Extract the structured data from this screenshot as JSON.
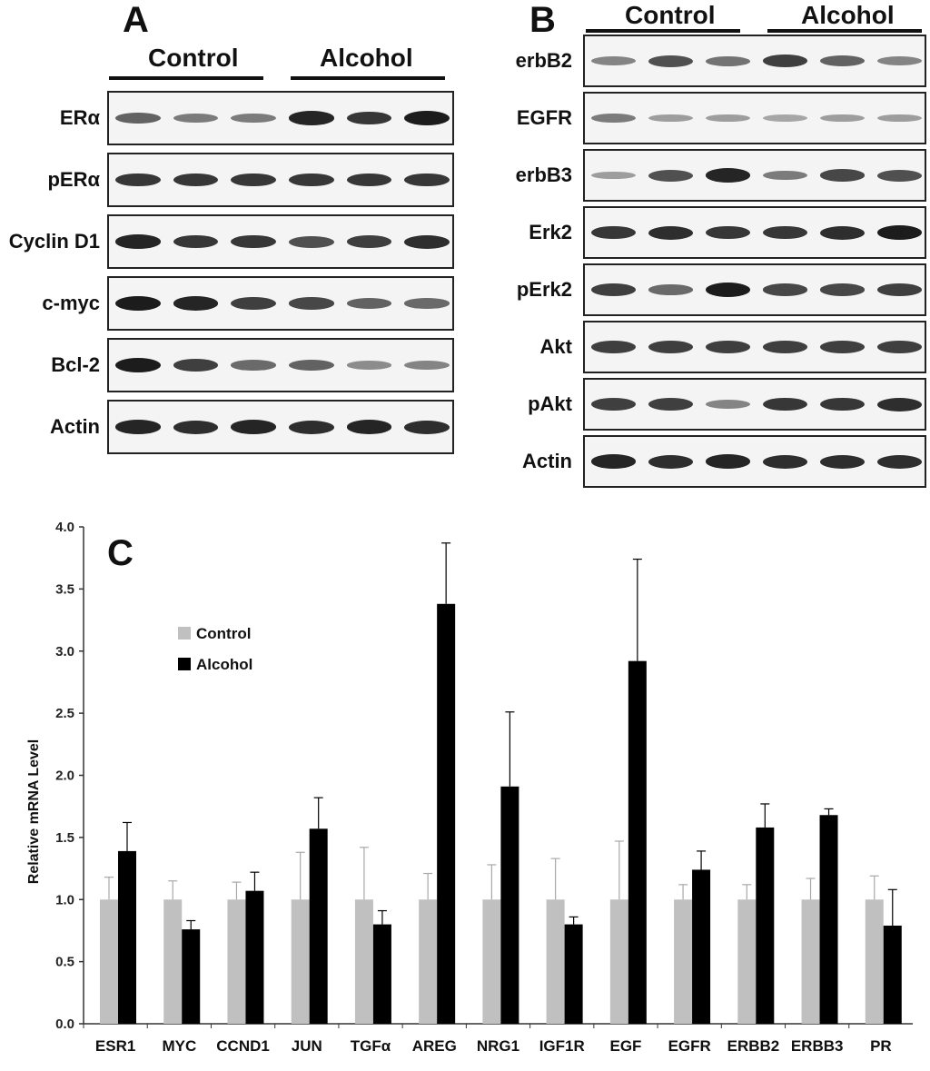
{
  "panelA": {
    "letter": "A",
    "groups": [
      "Control",
      "Alcohol"
    ],
    "rows": [
      {
        "label": "ERα",
        "bands": [
          0.6,
          0.45,
          0.45,
          0.95,
          0.85,
          1.0
        ]
      },
      {
        "label": "pERα",
        "bands": [
          0.85,
          0.85,
          0.85,
          0.85,
          0.85,
          0.85
        ]
      },
      {
        "label": "Cyclin D1",
        "bands": [
          0.95,
          0.85,
          0.85,
          0.7,
          0.8,
          0.9
        ]
      },
      {
        "label": "c-myc",
        "bands": [
          1.0,
          0.95,
          0.8,
          0.75,
          0.6,
          0.55
        ]
      },
      {
        "label": "Bcl-2",
        "bands": [
          1.0,
          0.8,
          0.55,
          0.6,
          0.35,
          0.4
        ]
      },
      {
        "label": "Actin",
        "bands": [
          0.95,
          0.9,
          0.95,
          0.9,
          0.95,
          0.9
        ]
      }
    ]
  },
  "panelB": {
    "letter": "B",
    "groups": [
      "Control",
      "Alcohol"
    ],
    "rows": [
      {
        "label": "erbB2",
        "bands": [
          0.4,
          0.7,
          0.5,
          0.8,
          0.6,
          0.4
        ]
      },
      {
        "label": "EGFR",
        "bands": [
          0.45,
          0.25,
          0.25,
          0.2,
          0.25,
          0.25
        ]
      },
      {
        "label": "erbB3",
        "bands": [
          0.25,
          0.7,
          0.95,
          0.45,
          0.75,
          0.7
        ]
      },
      {
        "label": "Erk2",
        "bands": [
          0.85,
          0.9,
          0.85,
          0.85,
          0.9,
          1.0
        ]
      },
      {
        "label": "pErk2",
        "bands": [
          0.8,
          0.55,
          1.0,
          0.75,
          0.75,
          0.8
        ]
      },
      {
        "label": "Akt",
        "bands": [
          0.8,
          0.8,
          0.8,
          0.8,
          0.8,
          0.8
        ]
      },
      {
        "label": "pAkt",
        "bands": [
          0.8,
          0.8,
          0.4,
          0.85,
          0.85,
          0.9
        ]
      },
      {
        "label": "Actin",
        "bands": [
          0.95,
          0.9,
          0.95,
          0.9,
          0.9,
          0.9
        ]
      }
    ]
  },
  "chart_data": {
    "type": "bar",
    "panel_letter": "C",
    "ylabel": "Relative mRNA Level",
    "ylim": [
      0,
      4.0
    ],
    "yticks": [
      "0.0",
      "0.5",
      "1.0",
      "1.5",
      "2.0",
      "2.5",
      "3.0",
      "3.5",
      "4.0"
    ],
    "categories": [
      "ESR1",
      "MYC",
      "CCND1",
      "JUN",
      "TGFα",
      "AREG",
      "NRG1",
      "IGF1R",
      "EGF",
      "EGFR",
      "ERBB2",
      "ERBB3",
      "PR"
    ],
    "series": [
      {
        "name": "Control",
        "color": "#c0c0c0",
        "values": [
          1.0,
          1.0,
          1.0,
          1.0,
          1.0,
          1.0,
          1.0,
          1.0,
          1.0,
          1.0,
          1.0,
          1.0,
          1.0
        ],
        "errors": [
          0.18,
          0.15,
          0.14,
          0.38,
          0.42,
          0.21,
          0.28,
          0.33,
          0.47,
          0.12,
          0.12,
          0.17,
          0.19
        ]
      },
      {
        "name": "Alcohol",
        "color": "#000000",
        "values": [
          1.39,
          0.76,
          1.07,
          1.57,
          0.8,
          3.38,
          1.91,
          0.8,
          2.92,
          1.24,
          1.58,
          1.68,
          0.79
        ],
        "errors": [
          0.23,
          0.07,
          0.15,
          0.25,
          0.11,
          0.49,
          0.6,
          0.06,
          0.82,
          0.15,
          0.19,
          0.05,
          0.29
        ]
      }
    ],
    "legend_position": "top-left",
    "grid": false
  }
}
